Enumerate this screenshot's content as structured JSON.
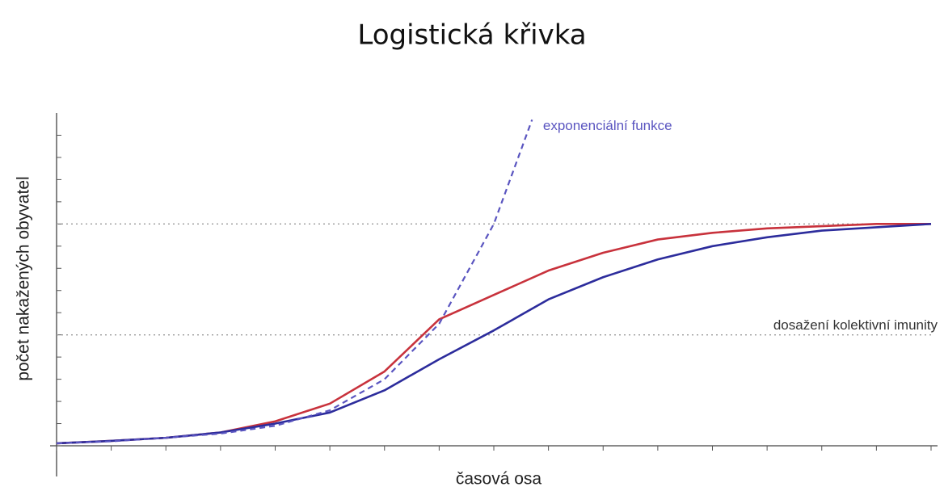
{
  "chart_data": {
    "type": "line",
    "title": "Logistická křivka",
    "x_label": "časová osa",
    "y_label": "počet nakažených obyvatel",
    "x": [
      0,
      1,
      2,
      3,
      4,
      5,
      6,
      7,
      8,
      9,
      10,
      11,
      12,
      13,
      14,
      15,
      16
    ],
    "series": [
      {
        "color": "#c8323c",
        "values": [
          0.11,
          0.22,
          0.36,
          0.6,
          1.1,
          1.9,
          3.35,
          5.7,
          6.8,
          7.9,
          8.7,
          9.3,
          9.6,
          9.8,
          9.9,
          10,
          10
        ]
      },
      {
        "color": "#2c2c9c",
        "values": [
          0.11,
          0.22,
          0.36,
          0.6,
          1.0,
          1.5,
          2.5,
          3.9,
          5.2,
          6.6,
          7.6,
          8.4,
          9.0,
          9.4,
          9.7,
          9.85,
          10
        ]
      },
      {
        "color": "#5a55c0",
        "dashed": true,
        "x": [
          0,
          1,
          2,
          3,
          4,
          5,
          6,
          7,
          8,
          8.7
        ],
        "values": [
          0.11,
          0.2,
          0.36,
          0.55,
          0.9,
          1.6,
          3.0,
          5.5,
          10,
          14.7
        ]
      }
    ],
    "hlines": [
      5,
      10
    ],
    "annotations": [
      {
        "text": "exponenciální funkce",
        "x": 8.9,
        "y": 14.4,
        "color": "#5a55c0"
      },
      {
        "text": "dosažení kolektivní imunity",
        "x": 16,
        "y": 5.4,
        "color": "#333333"
      }
    ],
    "xlim": [
      0,
      16
    ],
    "ylim": [
      0,
      15
    ],
    "xticks": [
      0,
      1,
      2,
      3,
      4,
      5,
      6,
      7,
      8,
      9,
      10,
      11,
      12,
      13,
      14,
      15,
      16
    ],
    "yticks": [
      0,
      1,
      2,
      3,
      4,
      5,
      6,
      7,
      8,
      9,
      10,
      11,
      12,
      13,
      14
    ]
  }
}
